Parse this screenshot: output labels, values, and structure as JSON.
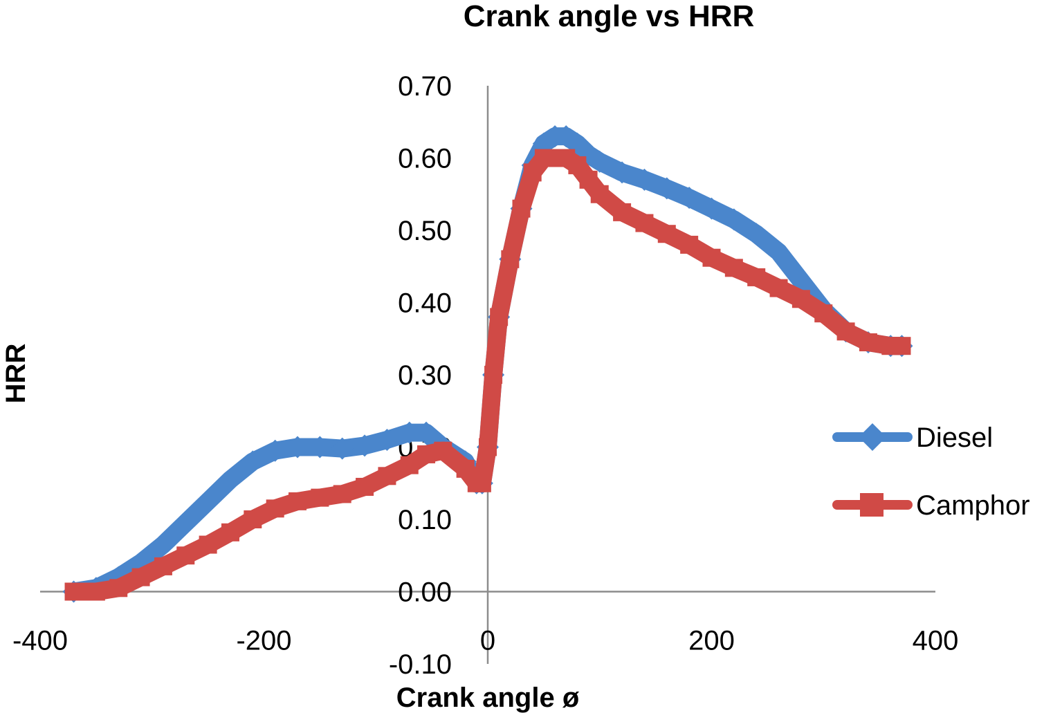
{
  "chart_data": {
    "type": "line",
    "title": "Crank angle vs HRR",
    "xlabel": "Crank angle ø",
    "ylabel": "HRR",
    "xlim": [
      -400,
      400
    ],
    "ylim": [
      -0.1,
      0.7
    ],
    "xticks": [
      -400,
      -200,
      0,
      200,
      400
    ],
    "xtick_labels": [
      "-400",
      "-200",
      "0",
      "200",
      "400"
    ],
    "yticks": [
      -0.1,
      0.0,
      0.1,
      0.2,
      0.3,
      0.4,
      0.5,
      0.6,
      0.7
    ],
    "ytick_labels": [
      "-0.10",
      "0.00",
      "0.10",
      "0.20",
      "0.30",
      "0.40",
      "0.50",
      "0.60",
      "0.70"
    ],
    "grid": false,
    "legend": "right",
    "series": [
      {
        "name": "Diesel",
        "color": "#4a86cc",
        "marker": "diamond",
        "x": [
          -370,
          -350,
          -330,
          -310,
          -290,
          -270,
          -250,
          -230,
          -210,
          -190,
          -170,
          -150,
          -130,
          -110,
          -90,
          -70,
          -55,
          -40,
          -20,
          -10,
          -5,
          0,
          5,
          10,
          20,
          30,
          40,
          50,
          60,
          70,
          80,
          90,
          100,
          120,
          140,
          160,
          180,
          200,
          220,
          240,
          260,
          280,
          300,
          320,
          340,
          360,
          370
        ],
        "y": [
          0.0,
          0.005,
          0.02,
          0.04,
          0.065,
          0.095,
          0.125,
          0.155,
          0.18,
          0.195,
          0.2,
          0.2,
          0.198,
          0.202,
          0.21,
          0.22,
          0.22,
          0.2,
          0.18,
          0.15,
          0.15,
          0.2,
          0.3,
          0.38,
          0.46,
          0.53,
          0.59,
          0.62,
          0.63,
          0.63,
          0.62,
          0.605,
          0.595,
          0.58,
          0.57,
          0.558,
          0.545,
          0.53,
          0.515,
          0.495,
          0.47,
          0.43,
          0.39,
          0.36,
          0.345,
          0.34,
          0.34
        ]
      },
      {
        "name": "Camphor",
        "color": "#d04a46",
        "marker": "square",
        "x": [
          -370,
          -350,
          -330,
          -310,
          -290,
          -270,
          -250,
          -230,
          -210,
          -190,
          -170,
          -150,
          -130,
          -110,
          -90,
          -70,
          -55,
          -40,
          -20,
          -10,
          -5,
          0,
          5,
          10,
          20,
          30,
          40,
          50,
          60,
          70,
          80,
          90,
          100,
          120,
          140,
          160,
          180,
          200,
          220,
          240,
          260,
          280,
          300,
          320,
          340,
          360,
          370
        ],
        "y": [
          0.0,
          0.0,
          0.005,
          0.02,
          0.035,
          0.05,
          0.065,
          0.082,
          0.1,
          0.115,
          0.125,
          0.13,
          0.135,
          0.145,
          0.16,
          0.175,
          0.19,
          0.195,
          0.17,
          0.15,
          0.15,
          0.2,
          0.3,
          0.38,
          0.46,
          0.53,
          0.58,
          0.6,
          0.6,
          0.6,
          0.59,
          0.57,
          0.55,
          0.525,
          0.51,
          0.495,
          0.48,
          0.462,
          0.448,
          0.435,
          0.42,
          0.405,
          0.385,
          0.36,
          0.345,
          0.34,
          0.34
        ]
      }
    ]
  }
}
